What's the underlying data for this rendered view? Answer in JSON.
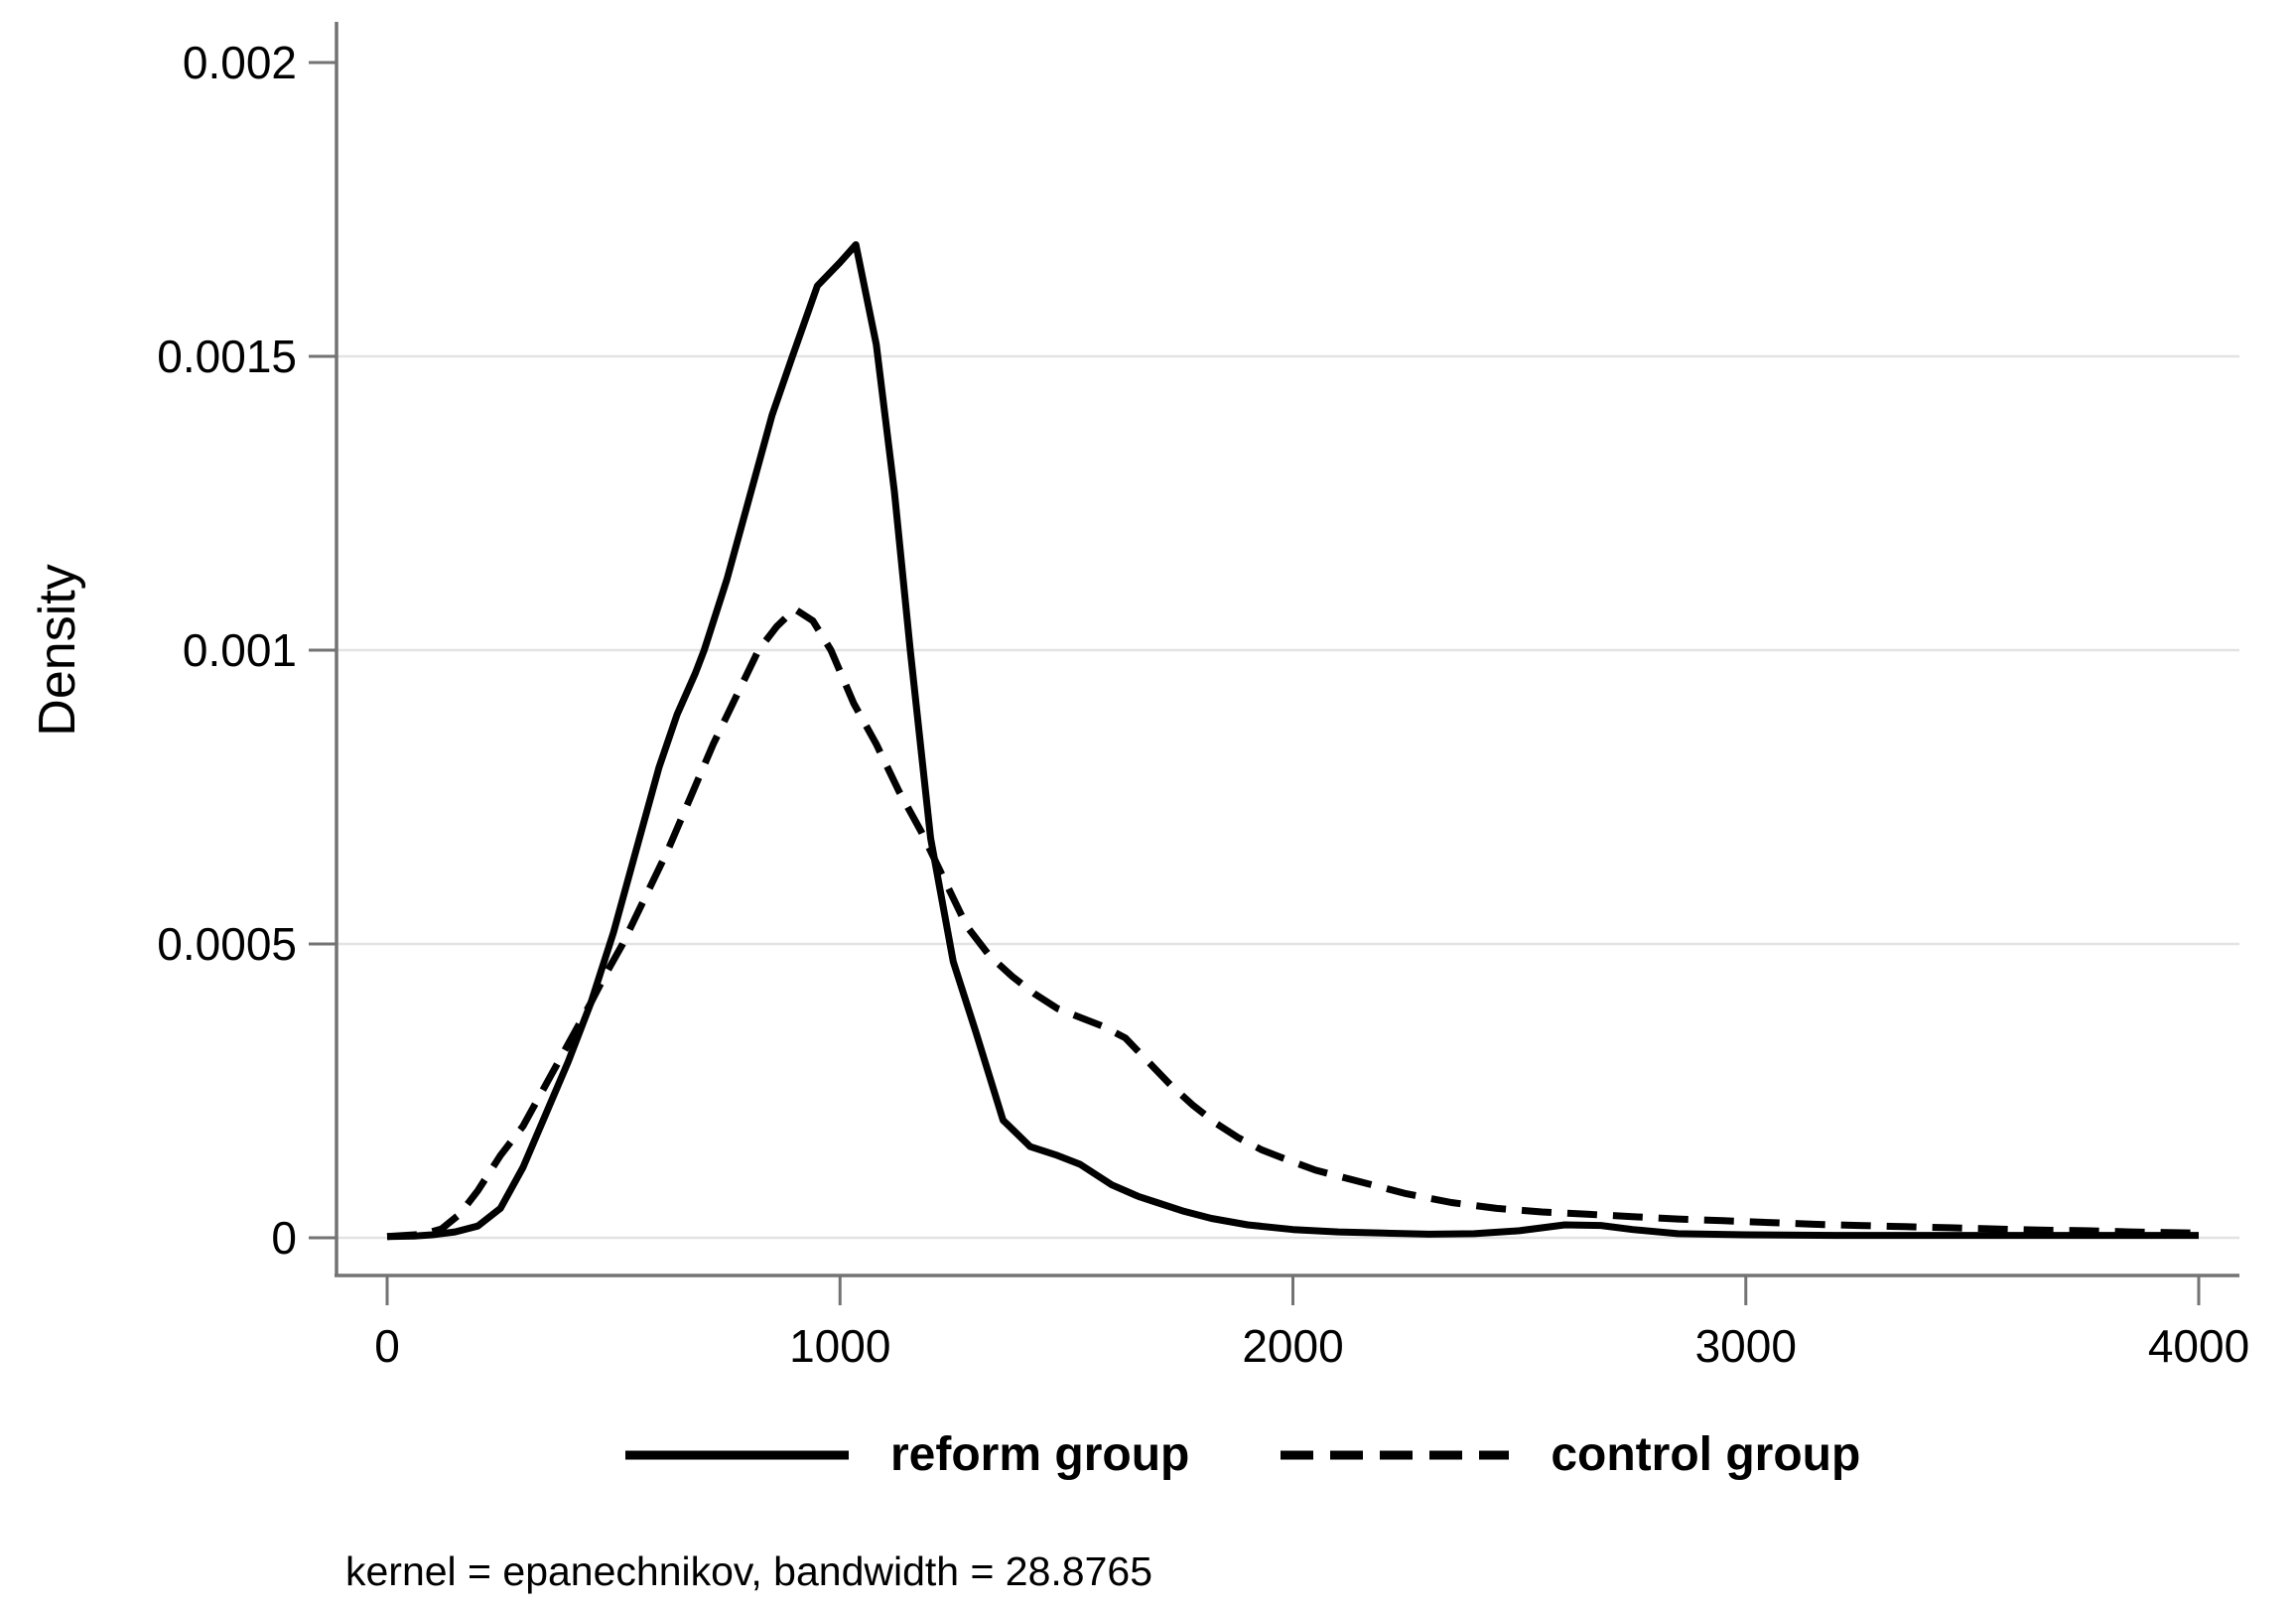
{
  "figure": {
    "ylabel": "Density",
    "footnote": "kernel = epanechnikov, bandwidth = 28.8765"
  },
  "legend": {
    "items": [
      {
        "label": "reform group",
        "style": "solid"
      },
      {
        "label": "control group",
        "style": "dashed"
      }
    ]
  },
  "colors": {
    "curve": "#000000",
    "axis": "#737373",
    "gridline": "#e3e3e3",
    "background": "#ffffff",
    "label_text": "#000000"
  },
  "chart_data": {
    "type": "line",
    "title": "",
    "xlabel": "",
    "ylabel": "Density",
    "xlim": [
      0,
      4000
    ],
    "ylim": [
      0,
      0.002
    ],
    "x_ticks": [
      0,
      1000,
      2000,
      3000,
      4000
    ],
    "x_tick_labels": [
      "0",
      "1000",
      "2000",
      "3000",
      "4000"
    ],
    "y_ticks": [
      0,
      0.0005,
      0.001,
      0.0015,
      0.002
    ],
    "y_tick_labels": [
      "0",
      "0.0005",
      "0.001",
      "0.0015",
      "0.002"
    ],
    "gridlines_at": [
      0,
      0.0005,
      0.001,
      0.0015
    ],
    "grid": "horizontal",
    "legend_position": "bottom",
    "annotation": "kernel = epanechnikov, bandwidth = 28.8765",
    "series": [
      {
        "name": "reform group",
        "line": "solid",
        "color": "#000000",
        "points": [
          [
            0,
            2e-06
          ],
          [
            60,
            3e-06
          ],
          [
            100,
            5e-06
          ],
          [
            150,
            1e-05
          ],
          [
            200,
            2e-05
          ],
          [
            250,
            5e-05
          ],
          [
            300,
            0.00012
          ],
          [
            350,
            0.00021
          ],
          [
            400,
            0.0003
          ],
          [
            450,
            0.0004
          ],
          [
            500,
            0.00052
          ],
          [
            550,
            0.00066
          ],
          [
            600,
            0.0008
          ],
          [
            640,
            0.00089
          ],
          [
            680,
            0.00096
          ],
          [
            700,
            0.001
          ],
          [
            750,
            0.00112
          ],
          [
            800,
            0.00126
          ],
          [
            850,
            0.0014
          ],
          [
            895,
            0.0015
          ],
          [
            950,
            0.00162
          ],
          [
            1000,
            0.00166
          ],
          [
            1035,
            0.00169
          ],
          [
            1080,
            0.00152
          ],
          [
            1120,
            0.00127
          ],
          [
            1155,
            0.001
          ],
          [
            1200,
            0.00068
          ],
          [
            1250,
            0.00047
          ],
          [
            1300,
            0.00035
          ],
          [
            1360,
            0.0002
          ],
          [
            1420,
            0.000155
          ],
          [
            1480,
            0.00014
          ],
          [
            1530,
            0.000125
          ],
          [
            1600,
            9e-05
          ],
          [
            1660,
            7e-05
          ],
          [
            1700,
            6e-05
          ],
          [
            1760,
            4.5e-05
          ],
          [
            1820,
            3.3e-05
          ],
          [
            1900,
            2.2e-05
          ],
          [
            2000,
            1.4e-05
          ],
          [
            2100,
            1e-05
          ],
          [
            2200,
            8e-06
          ],
          [
            2300,
            6e-06
          ],
          [
            2400,
            7e-06
          ],
          [
            2500,
            1.2e-05
          ],
          [
            2600,
            2.2e-05
          ],
          [
            2680,
            2.1e-05
          ],
          [
            2750,
            1.4e-05
          ],
          [
            2850,
            7e-06
          ],
          [
            3000,
            5e-06
          ],
          [
            3200,
            4e-06
          ],
          [
            3500,
            4e-06
          ],
          [
            3800,
            4e-06
          ],
          [
            4000,
            4e-06
          ]
        ]
      },
      {
        "name": "control group",
        "line": "dashed",
        "color": "#000000",
        "points": [
          [
            0,
            2e-06
          ],
          [
            80,
            6e-06
          ],
          [
            120,
            1.5e-05
          ],
          [
            160,
            4e-05
          ],
          [
            200,
            8e-05
          ],
          [
            250,
            0.00014
          ],
          [
            300,
            0.00019
          ],
          [
            350,
            0.00026
          ],
          [
            400,
            0.00033
          ],
          [
            450,
            0.0004
          ],
          [
            480,
            0.000445
          ],
          [
            520,
            0.0005
          ],
          [
            570,
            0.00058
          ],
          [
            620,
            0.00066
          ],
          [
            670,
            0.00075
          ],
          [
            720,
            0.00084
          ],
          [
            770,
            0.00092
          ],
          [
            820,
            0.001
          ],
          [
            860,
            0.00104
          ],
          [
            900,
            0.00107
          ],
          [
            940,
            0.00105
          ],
          [
            980,
            0.001
          ],
          [
            1030,
            0.00091
          ],
          [
            1080,
            0.00084
          ],
          [
            1130,
            0.00076
          ],
          [
            1180,
            0.00069
          ],
          [
            1230,
            0.00061
          ],
          [
            1280,
            0.00053
          ],
          [
            1330,
            0.00048
          ],
          [
            1380,
            0.000445
          ],
          [
            1430,
            0.000415
          ],
          [
            1480,
            0.00039
          ],
          [
            1530,
            0.000375
          ],
          [
            1580,
            0.00036
          ],
          [
            1630,
            0.00034
          ],
          [
            1680,
            0.0003
          ],
          [
            1730,
            0.00026
          ],
          [
            1780,
            0.000225
          ],
          [
            1830,
            0.000195
          ],
          [
            1880,
            0.00017
          ],
          [
            1930,
            0.00015
          ],
          [
            1980,
            0.000135
          ],
          [
            2050,
            0.000115
          ],
          [
            2150,
            9.5e-05
          ],
          [
            2250,
            7.5e-05
          ],
          [
            2350,
            6e-05
          ],
          [
            2450,
            5e-05
          ],
          [
            2550,
            4.4e-05
          ],
          [
            2650,
            4e-05
          ],
          [
            2750,
            3.6e-05
          ],
          [
            2850,
            3.2e-05
          ],
          [
            2950,
            2.9e-05
          ],
          [
            3050,
            2.6e-05
          ],
          [
            3150,
            2.3e-05
          ],
          [
            3250,
            2.1e-05
          ],
          [
            3350,
            1.9e-05
          ],
          [
            3450,
            1.7e-05
          ],
          [
            3550,
            1.5e-05
          ],
          [
            3650,
            1.3e-05
          ],
          [
            3750,
            1.2e-05
          ],
          [
            3850,
            1e-05
          ],
          [
            4000,
            8e-06
          ]
        ]
      }
    ]
  }
}
